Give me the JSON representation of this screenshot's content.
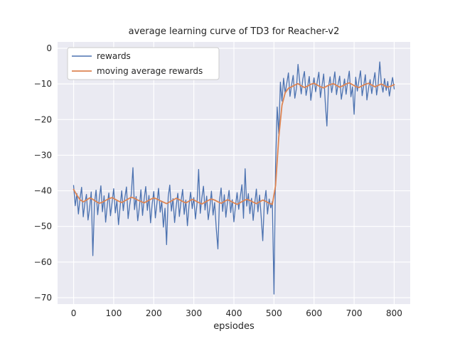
{
  "figure": {
    "background": "#ffffff"
  },
  "chart_data": {
    "type": "line",
    "title": "average learning curve of TD3 for Reacher-v2",
    "xlabel": "epsiodes",
    "ylabel": "",
    "plot_bg": "#eaeaf2",
    "grid_color": "#ffffff",
    "text_color": "#262626",
    "legend_frame_color": "#cccccc",
    "legend_bg": "#ffffff",
    "legend_position": "upper left",
    "grid": true,
    "xlim": [
      -40,
      840
    ],
    "ylim": [
      -71.8,
      1.8
    ],
    "xticks": [
      0,
      100,
      200,
      300,
      400,
      500,
      600,
      700,
      800
    ],
    "xtick_labels": [
      "0",
      "100",
      "200",
      "300",
      "400",
      "500",
      "600",
      "700",
      "800"
    ],
    "yticks": [
      0,
      -10,
      -20,
      -30,
      -40,
      -50,
      -60,
      -70
    ],
    "ytick_labels": [
      "0",
      "−10",
      "−20",
      "−30",
      "−40",
      "−50",
      "−60",
      "−70"
    ],
    "series": [
      {
        "name": "rewards",
        "color": "#4c72b0",
        "line_width": 1.3,
        "x_start": 0,
        "x_step": 4,
        "values": [
          -38.5,
          -44.2,
          -40.8,
          -46.5,
          -42.1,
          -39.0,
          -47.3,
          -43.6,
          -41.0,
          -48.2,
          -44.8,
          -40.3,
          -58.2,
          -43.5,
          -39.8,
          -46.7,
          -42.3,
          -38.6,
          -45.9,
          -41.4,
          -48.8,
          -44.0,
          -40.6,
          -47.0,
          -43.2,
          -39.4,
          -46.2,
          -42.7,
          -49.5,
          -44.5,
          -40.0,
          -45.6,
          -41.8,
          -38.9,
          -47.8,
          -43.9,
          -40.9,
          -33.5,
          -45.3,
          -41.6,
          -48.4,
          -44.7,
          -39.7,
          -46.9,
          -42.4,
          -38.8,
          -45.5,
          -41.3,
          -49.0,
          -43.8,
          -40.2,
          -47.6,
          -43.4,
          -39.3,
          -46.0,
          -42.9,
          -50.2,
          -44.9,
          -55.1,
          -41.7,
          -38.4,
          -45.7,
          -42.2,
          -48.9,
          -44.4,
          -40.7,
          -47.2,
          -43.0,
          -39.6,
          -46.6,
          -42.6,
          -49.8,
          -44.1,
          -40.4,
          -45.0,
          -41.9,
          -47.9,
          -43.7,
          -34.0,
          -46.3,
          -42.0,
          -38.7,
          -45.4,
          -41.5,
          -48.1,
          -44.6,
          -40.1,
          -46.8,
          -43.3,
          -50.6,
          -56.3,
          -42.8,
          -39.2,
          -45.8,
          -41.1,
          -47.4,
          -43.1,
          -39.9,
          -46.1,
          -42.5,
          -48.7,
          -44.2,
          -40.5,
          -45.2,
          -41.6,
          -38.3,
          -47.7,
          -33.8,
          -44.3,
          -40.8,
          -46.4,
          -42.1,
          -48.3,
          -43.6,
          -39.5,
          -45.9,
          -41.2,
          -47.1,
          -54.0,
          -43.4,
          -39.9,
          -46.5,
          -42.3,
          -44.8,
          -43.0,
          -69.0,
          -33.0,
          -16.5,
          -24.0,
          -9.5,
          -14.8,
          -8.4,
          -12.6,
          -9.8,
          -6.9,
          -13.5,
          -10.2,
          -7.6,
          -14.0,
          -11.3,
          -4.5,
          -9.1,
          -12.8,
          -8.7,
          -6.5,
          -13.2,
          -10.7,
          -7.9,
          -14.6,
          -11.0,
          -8.3,
          -12.2,
          -9.4,
          -6.7,
          -13.8,
          -10.4,
          -7.2,
          -15.1,
          -21.8,
          -10.9,
          -8.0,
          -12.4,
          -9.6,
          -6.6,
          -13.0,
          -10.1,
          -7.8,
          -14.3,
          -11.5,
          -8.6,
          -12.9,
          -9.2,
          -6.4,
          -13.6,
          -10.8,
          -18.5,
          -8.1,
          -12.0,
          -9.0,
          -6.3,
          -13.3,
          -10.5,
          -7.4,
          -14.5,
          -11.2,
          -8.8,
          -12.7,
          -9.5,
          -6.8,
          -13.1,
          -10.0,
          -3.8,
          -9.9,
          -12.3,
          -8.5,
          -11.8,
          -9.3,
          -13.4,
          -10.6,
          -8.2,
          -11.4
        ]
      },
      {
        "name": "moving average rewards",
        "color": "#dd8452",
        "line_width": 1.8,
        "x_start": 0,
        "x_step": 8,
        "values": [
          -39.6,
          -41.2,
          -42.5,
          -43.1,
          -42.6,
          -42.0,
          -42.4,
          -43.0,
          -43.5,
          -43.2,
          -42.7,
          -42.2,
          -41.9,
          -42.4,
          -42.9,
          -43.3,
          -42.8,
          -42.3,
          -41.8,
          -42.1,
          -42.6,
          -43.0,
          -43.4,
          -42.9,
          -42.4,
          -42.0,
          -42.3,
          -42.8,
          -43.2,
          -43.6,
          -43.1,
          -42.6,
          -42.1,
          -42.5,
          -43.0,
          -43.4,
          -42.9,
          -42.4,
          -42.8,
          -43.3,
          -43.7,
          -43.2,
          -42.7,
          -42.3,
          -42.6,
          -43.1,
          -43.5,
          -43.0,
          -42.5,
          -42.9,
          -43.4,
          -43.8,
          -43.3,
          -42.8,
          -42.4,
          -42.7,
          -43.2,
          -43.6,
          -43.1,
          -42.6,
          -43.0,
          -43.5,
          -43.8,
          -38.5,
          -25.0,
          -16.0,
          -12.5,
          -11.2,
          -10.8,
          -10.3,
          -9.9,
          -10.5,
          -11.0,
          -10.6,
          -10.1,
          -9.8,
          -10.3,
          -10.8,
          -11.1,
          -10.6,
          -10.2,
          -9.9,
          -10.4,
          -10.9,
          -10.5,
          -10.0,
          -9.7,
          -10.2,
          -10.7,
          -11.0,
          -10.5,
          -10.1,
          -9.8,
          -10.3,
          -10.8,
          -10.4,
          -10.0,
          -10.5,
          -10.9,
          -10.6,
          -10.2
        ]
      }
    ]
  }
}
